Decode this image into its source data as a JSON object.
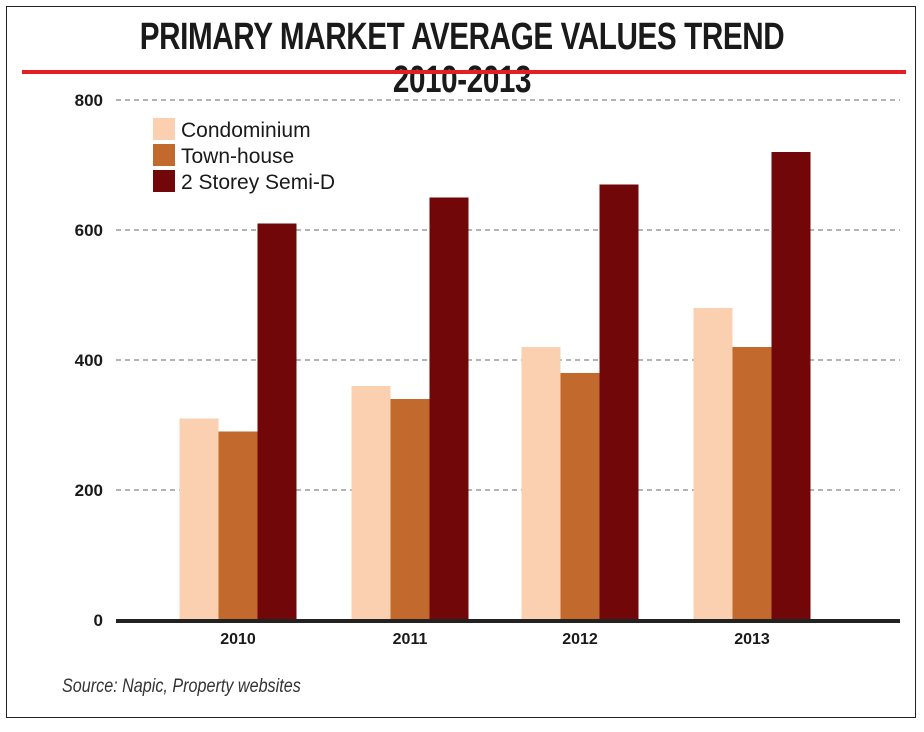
{
  "chart_data": {
    "type": "bar",
    "title": "PRIMARY MARKET AVERAGE VALUES TREND 2010-2013",
    "xlabel": "",
    "ylabel": "",
    "categories": [
      "2010",
      "2011",
      "2012",
      "2013"
    ],
    "series": [
      {
        "name": "Condominium",
        "color": "#fbd0b0",
        "values": [
          310,
          360,
          420,
          480
        ]
      },
      {
        "name": "Town-house",
        "color": "#c2692e",
        "values": [
          290,
          340,
          380,
          420
        ]
      },
      {
        "name": "2 Storey Semi-D",
        "color": "#720709",
        "values": [
          610,
          650,
          670,
          720
        ]
      }
    ],
    "ylim": [
      0,
      800
    ],
    "yticks": [
      0,
      200,
      400,
      600,
      800
    ],
    "grid": true,
    "legend_position": "top-left",
    "source": "Source: Napic, Property websites"
  },
  "colors": {
    "title_rule": "#e31e24",
    "gridline": "#888888",
    "axis": "#222222"
  }
}
